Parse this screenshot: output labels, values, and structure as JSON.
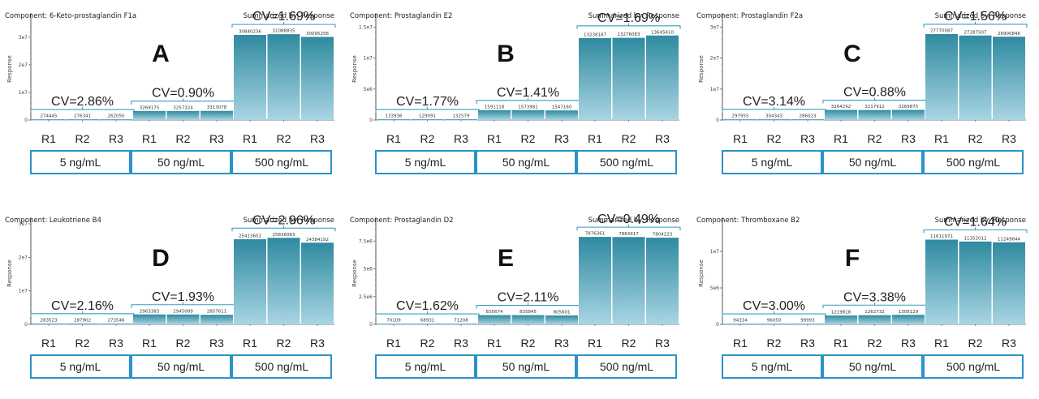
{
  "colors": {
    "bar_top": "#2f8aa0",
    "bar_bottom": "#a9d5e3",
    "bracket": "#3a9cc4",
    "box_border": "#2a93c9",
    "axis": "#555555"
  },
  "chart_data": [
    {
      "type": "bar",
      "panel_letter": "A",
      "title": "Component: 6-Keto-prostaglandin F1a",
      "subtitle": "Summarized by: Response",
      "ylabel": "Response",
      "yticks": [
        0,
        10000000,
        20000000,
        30000000
      ],
      "ytick_labels": [
        "0",
        "1e7",
        "2e7",
        "3e7"
      ],
      "ylim": [
        0,
        37000000
      ],
      "categories": [
        "R1",
        "R2",
        "R3",
        "R1",
        "R2",
        "R3",
        "R1",
        "R2",
        "R3"
      ],
      "groups": [
        {
          "label": "5 ng/mL",
          "cv": "CV=2.86%",
          "values": [
            274445,
            276341,
            262050
          ]
        },
        {
          "label": "50 ng/mL",
          "cv": "CV=0.90%",
          "values": [
            3269175,
            3257324,
            3313078
          ]
        },
        {
          "label": "500 ng/mL",
          "cv": "CV=1.69%",
          "values": [
            30840236,
            31088835,
            30095256
          ]
        }
      ]
    },
    {
      "type": "bar",
      "panel_letter": "B",
      "title": "Component: Prostaglandin E2",
      "subtitle": "Summarized by: Response",
      "ylabel": "Response",
      "yticks": [
        0,
        5000000,
        10000000,
        15000000
      ],
      "ytick_labels": [
        "0",
        "5e6",
        "1e7",
        "1.5e7"
      ],
      "ylim": [
        0,
        16500000
      ],
      "categories": [
        "R1",
        "R2",
        "R3",
        "R1",
        "R2",
        "R3",
        "R1",
        "R2",
        "R3"
      ],
      "groups": [
        {
          "label": "5 ng/mL",
          "cv": "CV=1.77%",
          "values": [
            133936,
            129091,
            132579
          ]
        },
        {
          "label": "50 ng/mL",
          "cv": "CV=1.41%",
          "values": [
            1591118,
            1573981,
            1547160
          ]
        },
        {
          "label": "500 ng/mL",
          "cv": "CV=1.69%",
          "values": [
            13238187,
            13276083,
            13645610
          ]
        }
      ]
    },
    {
      "type": "bar",
      "panel_letter": "C",
      "title": "Component: Prostaglandin F2a",
      "subtitle": "Summarized by: Response",
      "ylabel": "Response",
      "yticks": [
        0,
        10000000,
        20000000,
        30000000
      ],
      "ytick_labels": [
        "0",
        "1e7",
        "2e7",
        "3e7"
      ],
      "ylim": [
        0,
        33000000
      ],
      "categories": [
        "R1",
        "R2",
        "R3",
        "R1",
        "R2",
        "R3",
        "R1",
        "R2",
        "R3"
      ],
      "groups": [
        {
          "label": "5 ng/mL",
          "cv": "CV=3.14%",
          "values": [
            297955,
            304343,
            286023
          ]
        },
        {
          "label": "50 ng/mL",
          "cv": "CV=0.88%",
          "values": [
            3264292,
            3217912,
            3269875
          ]
        },
        {
          "label": "500 ng/mL",
          "cv": "CV=1.56%",
          "values": [
            27770087,
            27287507,
            26900846
          ]
        }
      ]
    },
    {
      "type": "bar",
      "panel_letter": "D",
      "title": "Component: Leukotriene B4",
      "subtitle": "Summarized by: Response",
      "ylabel": "Response",
      "yticks": [
        0,
        10000000,
        20000000,
        30000000
      ],
      "ytick_labels": [
        "0",
        "1e7",
        "2e7",
        "3e7"
      ],
      "ylim": [
        0,
        30500000
      ],
      "categories": [
        "R1",
        "R2",
        "R3",
        "R1",
        "R2",
        "R3",
        "R1",
        "R2",
        "R3"
      ],
      "groups": [
        {
          "label": "5 ng/mL",
          "cv": "CV=2.16%",
          "values": [
            283523,
            287902,
            273546
          ]
        },
        {
          "label": "50 ng/mL",
          "cv": "CV=1.93%",
          "values": [
            2963383,
            2945089,
            2857611
          ]
        },
        {
          "label": "500 ng/mL",
          "cv": "CV=2.96%",
          "values": [
            25413602,
            25836063,
            24384192
          ]
        }
      ]
    },
    {
      "type": "bar",
      "panel_letter": "E",
      "title": "Component: Prostaglandin D2",
      "subtitle": "Summarized by: Response",
      "ylabel": "Response",
      "yticks": [
        0,
        2500000,
        5000000,
        7500000
      ],
      "ytick_labels": [
        "0",
        "2.5e6",
        "5e6",
        "7.5e6"
      ],
      "ylim": [
        0,
        9200000
      ],
      "categories": [
        "R1",
        "R2",
        "R3",
        "R1",
        "R2",
        "R3",
        "R1",
        "R2",
        "R3"
      ],
      "groups": [
        {
          "label": "5 ng/mL",
          "cv": "CV=1.62%",
          "values": [
            70109,
            68931,
            71208
          ]
        },
        {
          "label": "50 ng/mL",
          "cv": "CV=2.11%",
          "values": [
            835674,
            835845,
            805601
          ]
        },
        {
          "label": "500 ng/mL",
          "cv": "CV=0.49%",
          "values": [
            7876361,
            7864917,
            7804223
          ]
        }
      ]
    },
    {
      "type": "bar",
      "panel_letter": "F",
      "title": "Component: Thromboxane B2",
      "subtitle": "Summarized by: Response",
      "ylabel": "Response",
      "yticks": [
        0,
        5000000,
        10000000
      ],
      "ytick_labels": [
        "0",
        "5e6",
        "1e7"
      ],
      "ylim": [
        0,
        14000000
      ],
      "categories": [
        "R1",
        "R2",
        "R3",
        "R1",
        "R2",
        "R3",
        "R1",
        "R2",
        "R3"
      ],
      "groups": [
        {
          "label": "5 ng/mL",
          "cv": "CV=3.00%",
          "values": [
            94334,
            96050,
            99993
          ]
        },
        {
          "label": "50 ng/mL",
          "cv": "CV=3.38%",
          "values": [
            1219818,
            1262732,
            1305129
          ]
        },
        {
          "label": "500 ng/mL",
          "cv": "CV=1.64%",
          "values": [
            11611971,
            11352012,
            11249844
          ]
        }
      ]
    }
  ]
}
